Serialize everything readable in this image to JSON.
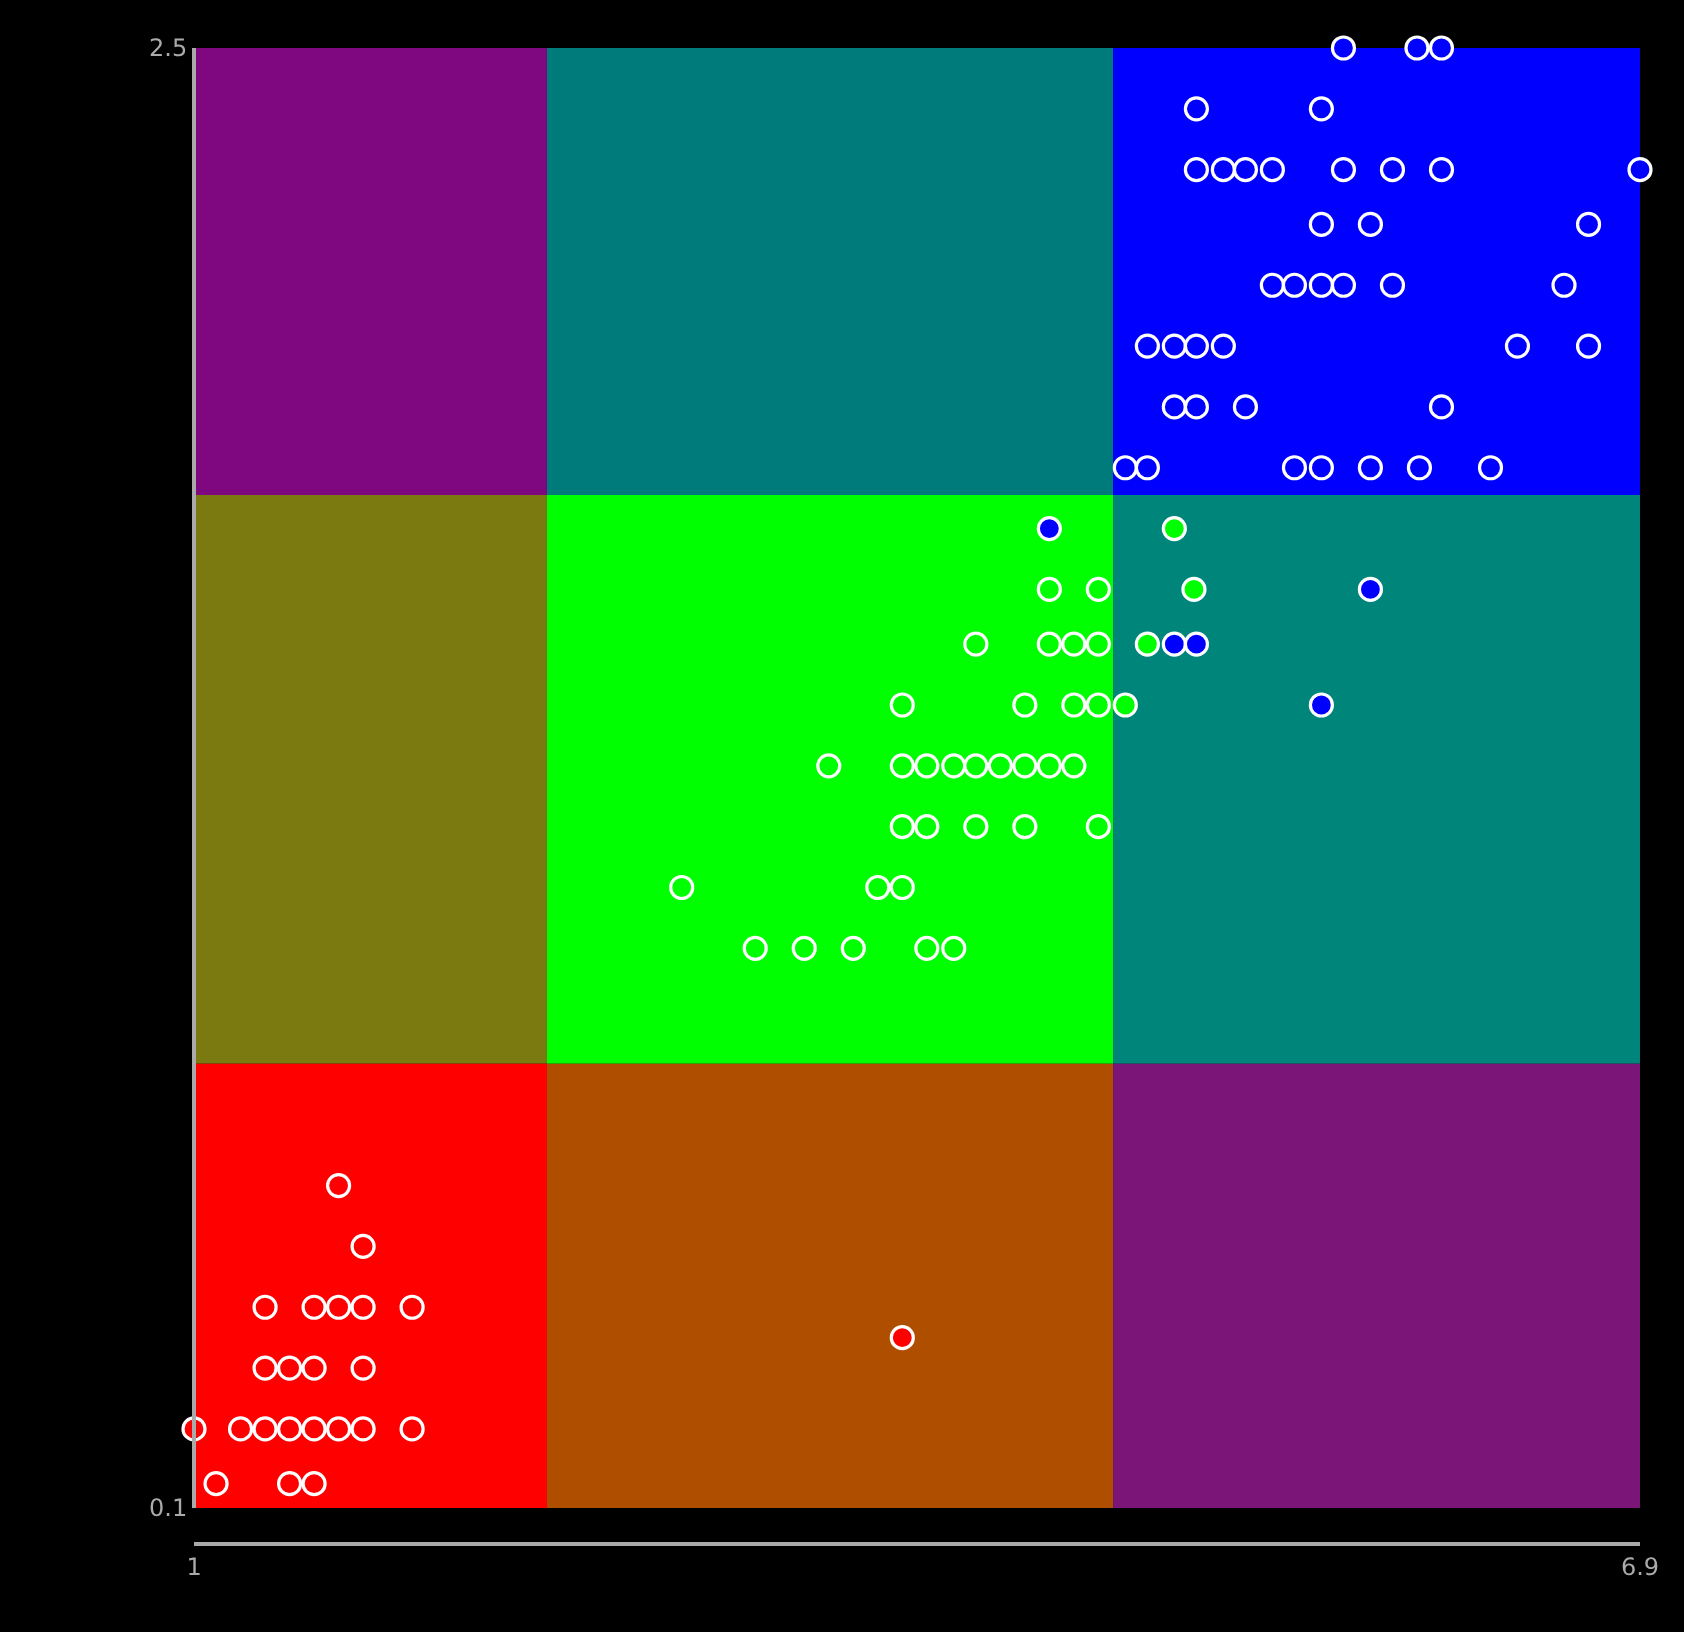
{
  "chart_data": {
    "type": "scatter",
    "xlim": [
      1,
      6.9
    ],
    "ylim": [
      0.1,
      2.5
    ],
    "xticks": [
      1,
      6.9
    ],
    "yticks": [
      0.1,
      2.5
    ],
    "marker": "circle",
    "series": [
      {
        "color": "#ff0000",
        "x": [
          1.59,
          1.69,
          1.29,
          1.49,
          1.59,
          1.69,
          1.89,
          1.29,
          1.39,
          1.49,
          1.69,
          1.0,
          1.19,
          1.29,
          1.39,
          1.49,
          1.59,
          1.69,
          1.89,
          1.09,
          1.39,
          1.49,
          3.89
        ],
        "values": [
          0.63,
          0.53,
          0.43,
          0.43,
          0.43,
          0.43,
          0.43,
          0.33,
          0.33,
          0.33,
          0.33,
          0.23,
          0.23,
          0.23,
          0.23,
          0.23,
          0.23,
          0.23,
          0.23,
          0.14,
          0.14,
          0.14,
          0.38
        ]
      },
      {
        "color": "#00ff00",
        "x": [
          5.0,
          5.08,
          4.89,
          4.49,
          4.69,
          4.19,
          4.49,
          4.59,
          4.69,
          3.89,
          4.39,
          4.59,
          4.69,
          4.8,
          3.59,
          3.89,
          3.99,
          4.1,
          4.19,
          4.29,
          4.39,
          4.49,
          4.59,
          3.89,
          3.99,
          4.19,
          4.39,
          4.69,
          2.99,
          3.79,
          3.89,
          3.29,
          3.49,
          3.69,
          3.99,
          4.1
        ],
        "values": [
          1.71,
          1.61,
          1.52,
          1.61,
          1.61,
          1.52,
          1.52,
          1.52,
          1.52,
          1.42,
          1.42,
          1.42,
          1.42,
          1.42,
          1.32,
          1.32,
          1.32,
          1.32,
          1.32,
          1.32,
          1.32,
          1.32,
          1.32,
          1.22,
          1.22,
          1.22,
          1.22,
          1.22,
          1.12,
          1.12,
          1.12,
          1.02,
          1.02,
          1.02,
          1.02,
          1.02
        ]
      },
      {
        "color": "#0000ff",
        "x": [
          4.49,
          5.8,
          5.0,
          5.09,
          5.6,
          5.69,
          5.99,
          6.09,
          5.09,
          5.6,
          5.09,
          5.2,
          5.29,
          5.4,
          5.69,
          5.89,
          6.09,
          6.9,
          5.6,
          5.8,
          6.69,
          5.4,
          5.49,
          5.6,
          5.69,
          5.89,
          6.59,
          4.89,
          5.0,
          5.09,
          5.2,
          6.4,
          6.69,
          5.0,
          5.09,
          5.29,
          6.09,
          4.8,
          4.89,
          5.49,
          5.6,
          5.8,
          6.0,
          6.29
        ],
        "values": [
          1.71,
          1.61,
          1.52,
          1.52,
          1.42,
          2.5,
          2.5,
          2.5,
          2.4,
          2.4,
          2.3,
          2.3,
          2.3,
          2.3,
          2.3,
          2.3,
          2.3,
          2.3,
          2.21,
          2.21,
          2.21,
          2.11,
          2.11,
          2.11,
          2.11,
          2.11,
          2.11,
          2.01,
          2.01,
          2.01,
          2.01,
          2.01,
          2.01,
          1.91,
          1.91,
          1.91,
          1.91,
          1.81,
          1.81,
          1.81,
          1.81,
          1.81,
          1.81,
          1.81
        ]
      }
    ]
  }
}
